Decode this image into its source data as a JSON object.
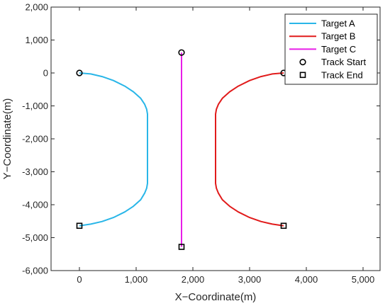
{
  "chart_data": {
    "type": "line",
    "title": "",
    "xlabel": "X−Coordinate(m)",
    "ylabel": "Y−Coordinate(m)",
    "xlim": [
      -500,
      5300
    ],
    "ylim": [
      -6000,
      2000
    ],
    "x_ticks": [
      0,
      1000,
      2000,
      3000,
      4000,
      5000
    ],
    "x_tick_labels": [
      "0",
      "1,000",
      "2,000",
      "3,000",
      "4,000",
      "5,000"
    ],
    "y_ticks": [
      2000,
      1000,
      0,
      -1000,
      -2000,
      -3000,
      -4000,
      -5000,
      -6000
    ],
    "y_tick_labels": [
      "2,000",
      "1,000",
      "0",
      "-1,000",
      "-2,000",
      "-3,000",
      "-4,000",
      "-5,000",
      "-6,000"
    ],
    "grid": false,
    "legend_position": "top-right",
    "series": [
      {
        "name": "Target A",
        "color": "#29b6e8",
        "x": [
          0,
          200,
          400,
          600,
          800,
          950,
          1080,
          1150,
          1185,
          1200,
          1200,
          1200,
          1185,
          1150,
          1080,
          950,
          800,
          600,
          400,
          200,
          0
        ],
        "y": [
          0,
          -30,
          -110,
          -230,
          -400,
          -570,
          -770,
          -950,
          -1100,
          -1250,
          -2300,
          -3350,
          -3500,
          -3650,
          -3850,
          -4050,
          -4220,
          -4390,
          -4510,
          -4590,
          -4640
        ]
      },
      {
        "name": "Target B",
        "color": "#e11b1b",
        "x": [
          3600,
          3400,
          3200,
          3000,
          2800,
          2650,
          2520,
          2450,
          2415,
          2400,
          2400,
          2400,
          2415,
          2450,
          2520,
          2650,
          2800,
          3000,
          3200,
          3400,
          3600
        ],
        "y": [
          0,
          -30,
          -110,
          -230,
          -400,
          -570,
          -770,
          -950,
          -1100,
          -1250,
          -2300,
          -3350,
          -3500,
          -3650,
          -3850,
          -4050,
          -4220,
          -4390,
          -4510,
          -4590,
          -4640
        ]
      },
      {
        "name": "Target C",
        "color": "#e81ee8",
        "x": [
          1800,
          1800
        ],
        "y": [
          620,
          -5280
        ]
      }
    ],
    "markers": [
      {
        "name": "Track Start",
        "shape": "circle",
        "points": [
          [
            0,
            0
          ],
          [
            3600,
            0
          ],
          [
            1800,
            620
          ]
        ]
      },
      {
        "name": "Track End",
        "shape": "square",
        "points": [
          [
            0,
            -4640
          ],
          [
            3600,
            -4640
          ],
          [
            1800,
            -5280
          ]
        ]
      }
    ]
  }
}
